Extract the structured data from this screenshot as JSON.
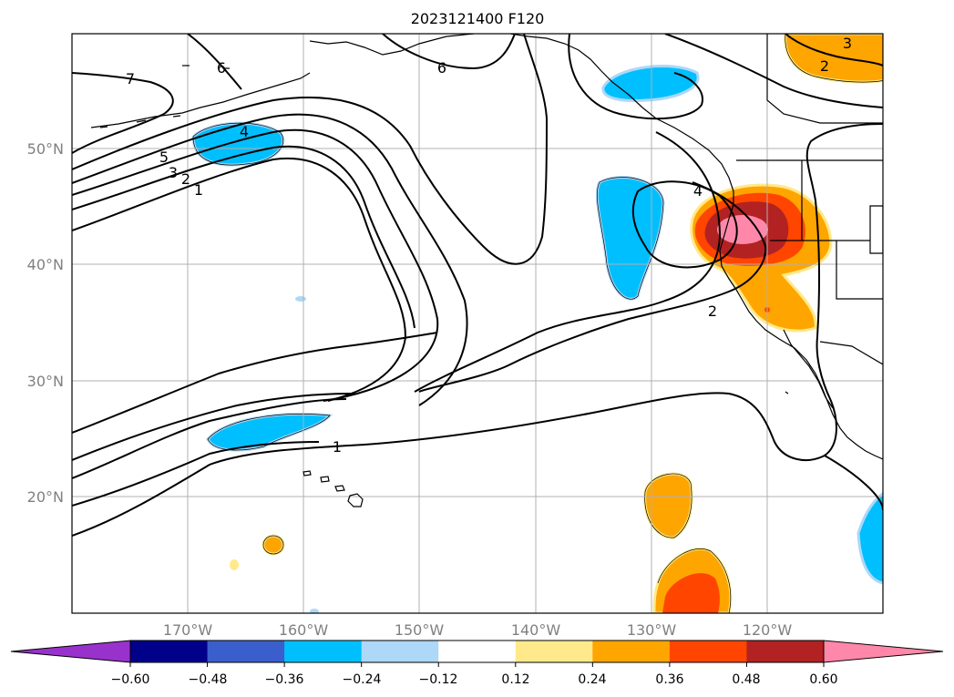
{
  "title": "2023121400 F120",
  "map": {
    "lon_range": [
      -180,
      -110
    ],
    "lat_range": [
      10,
      60
    ],
    "lat_ticks": [
      "50°N",
      "40°N",
      "30°N",
      "20°N"
    ],
    "lon_ticks": [
      "170°W",
      "160°W",
      "150°W",
      "140°W",
      "130°W",
      "120°W"
    ],
    "grid": true,
    "contour_labels": [
      "7",
      "6",
      "6",
      "5",
      "4",
      "3",
      "2",
      "1",
      "4",
      "3",
      "2",
      "2",
      "1"
    ]
  },
  "colorbar": {
    "ticks": [
      "−0.60",
      "−0.48",
      "−0.36",
      "−0.24",
      "−0.12",
      "0.12",
      "0.24",
      "0.36",
      "0.48",
      "0.60"
    ],
    "colors": [
      "#9932cc",
      "#00008b",
      "#3a5fcd",
      "#00bfff",
      "#add8f7",
      "#ffffff",
      "#ffe98a",
      "#ffa500",
      "#ff4500",
      "#b22222",
      "#ff88aa"
    ],
    "extend": "both"
  }
}
